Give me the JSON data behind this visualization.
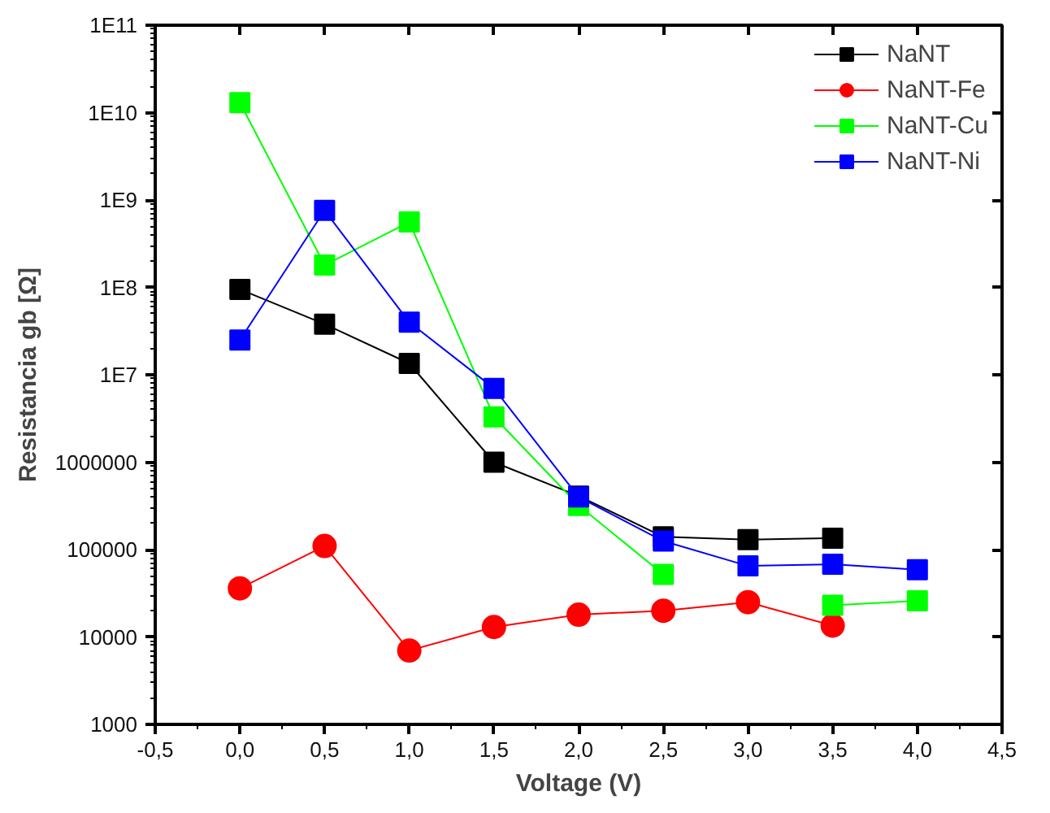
{
  "chart_data": {
    "type": "line",
    "xlabel": "Voltage (V)",
    "ylabel": "Resistancia gb [Ω]",
    "xlim": [
      -0.5,
      4.5
    ],
    "ylim": [
      1000,
      100000000000
    ],
    "log": "y",
    "grid": false,
    "legend": "top right",
    "xticks": [
      {
        "value": -0.5,
        "label": "-0,5"
      },
      {
        "value": 0,
        "label": "0,0"
      },
      {
        "value": 0.5,
        "label": "0,5"
      },
      {
        "value": 1,
        "label": "1,0"
      },
      {
        "value": 1.5,
        "label": "1,5"
      },
      {
        "value": 2,
        "label": "2,0"
      },
      {
        "value": 2.5,
        "label": "2,5"
      },
      {
        "value": 3,
        "label": "3,0"
      },
      {
        "value": 3.5,
        "label": "3,5"
      },
      {
        "value": 4,
        "label": "4,0"
      },
      {
        "value": 4.5,
        "label": "4,5"
      }
    ],
    "yticks": [
      1000,
      10000,
      100000,
      1000000,
      {
        "value": 10000000,
        "label": "1E7"
      },
      {
        "value": 100000000,
        "label": "1E8"
      },
      {
        "value": 1000000000,
        "label": "1E9"
      },
      {
        "value": 10000000000,
        "label": "1E10"
      },
      {
        "value": 100000000000,
        "label": "1E11"
      }
    ],
    "x": [
      0,
      0.5,
      1,
      1.5,
      2,
      2.5,
      3,
      3.5,
      4
    ],
    "series": [
      {
        "name": "NaNT",
        "color": "#000000",
        "marker": "square",
        "values": [
          95000000,
          38000000,
          13500000,
          1000000,
          410000,
          140000,
          130000,
          135000,
          null
        ]
      },
      {
        "name": "NaNT-Fe",
        "color": "#ff0000",
        "marker": "circle",
        "values": [
          36000,
          110000,
          7000,
          13000,
          18000,
          20000,
          25000,
          13500,
          null
        ]
      },
      {
        "name": "NaNT-Cu",
        "color": "#00ff00",
        "marker": "square",
        "values": [
          13000000000,
          180000000,
          560000000,
          3300000,
          320000,
          52000,
          null,
          23000,
          26000
        ]
      },
      {
        "name": "NaNT-Ni",
        "color": "#0000ff",
        "marker": "square",
        "values": [
          25000000,
          760000000,
          40000000,
          7000000,
          400000,
          125000,
          65000,
          68000,
          59000
        ]
      }
    ]
  }
}
